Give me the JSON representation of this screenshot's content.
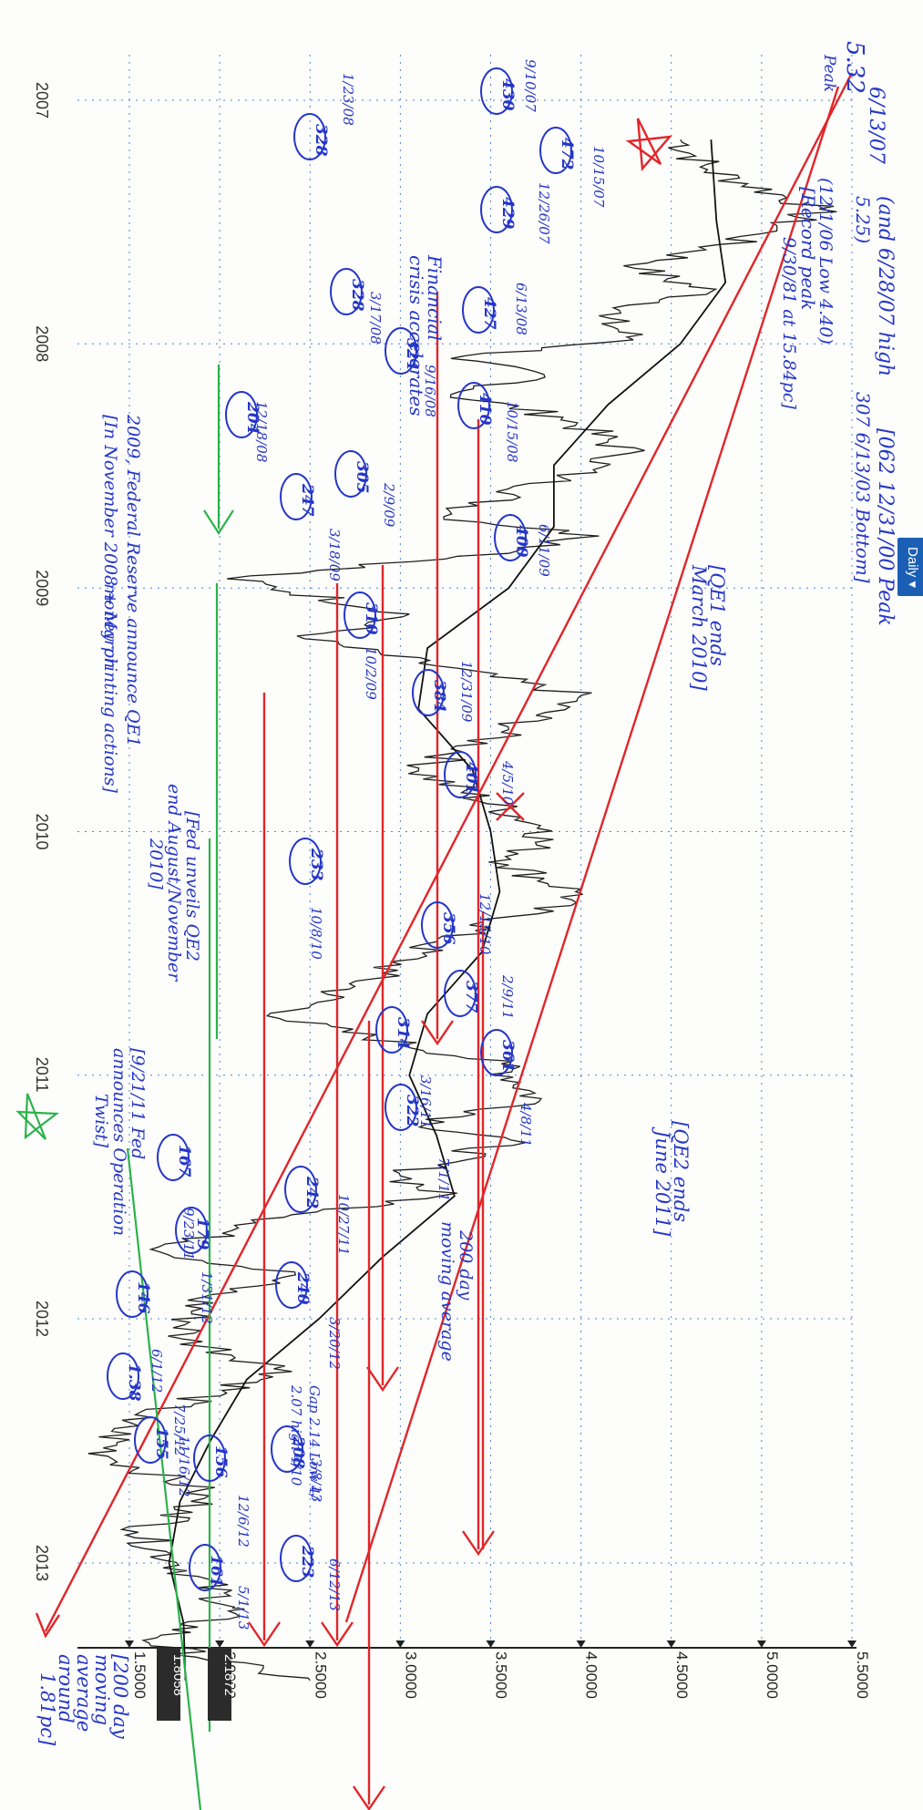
{
  "tab": {
    "label": "Daily ▾"
  },
  "badges": {
    "upper": "2.1872",
    "lower": "1.8058"
  },
  "chart_data": {
    "type": "line",
    "x_ticks": [
      "2007",
      "2008",
      "2009",
      "2010",
      "2011",
      "2012",
      "2013"
    ],
    "y_ticks": [
      "1.5000",
      "2.0000",
      "2.5000",
      "3.0000",
      "3.5000",
      "4.0000",
      "4.5000",
      "5.0000",
      "5.5000"
    ],
    "ylim": [
      1.3,
      5.6
    ],
    "series": [
      {
        "points": [
          [
            "2007-03-01",
            4.55
          ],
          [
            "2007-04-15",
            4.7
          ],
          [
            "2007-06-13",
            5.32
          ],
          [
            "2007-07-20",
            5.0
          ],
          [
            "2007-09-10",
            4.3
          ],
          [
            "2007-10-15",
            4.72
          ],
          [
            "2007-11-20",
            4.1
          ],
          [
            "2007-12-26",
            4.29
          ],
          [
            "2008-01-23",
            3.28
          ],
          [
            "2008-02-20",
            3.8
          ],
          [
            "2008-03-17",
            3.28
          ],
          [
            "2008-04-20",
            3.9
          ],
          [
            "2008-06-13",
            4.27
          ],
          [
            "2008-07-20",
            3.9
          ],
          [
            "2008-09-16",
            3.24
          ],
          [
            "2008-10-15",
            4.1
          ],
          [
            "2008-11-10",
            3.6
          ],
          [
            "2008-12-18",
            2.04
          ],
          [
            "2009-02-09",
            3.05
          ],
          [
            "2009-03-18",
            2.47
          ],
          [
            "2009-06-11",
            4.0
          ],
          [
            "2009-08-01",
            3.6
          ],
          [
            "2009-10-02",
            3.1
          ],
          [
            "2009-12-31",
            3.84
          ],
          [
            "2010-02-20",
            3.6
          ],
          [
            "2010-04-05",
            4.01
          ],
          [
            "2010-06-15",
            3.2
          ],
          [
            "2010-08-01",
            2.9
          ],
          [
            "2010-10-08",
            2.33
          ],
          [
            "2010-12-15",
            3.56
          ],
          [
            "2011-02-09",
            3.77
          ],
          [
            "2011-03-16",
            3.14
          ],
          [
            "2011-04-08",
            3.61
          ],
          [
            "2011-06-01",
            3.0
          ],
          [
            "2011-07-01",
            3.22
          ],
          [
            "2011-08-10",
            2.2
          ],
          [
            "2011-09-23",
            1.67
          ],
          [
            "2011-10-27",
            2.42
          ],
          [
            "2011-11-30",
            1.9
          ],
          [
            "2012-01-31",
            1.79
          ],
          [
            "2012-03-20",
            2.4
          ],
          [
            "2012-06-01",
            1.46
          ],
          [
            "2012-07-25",
            1.38
          ],
          [
            "2012-09-14",
            1.89
          ],
          [
            "2012-10-17",
            1.85
          ],
          [
            "2012-11-16",
            1.55
          ],
          [
            "2012-12-31",
            1.76
          ],
          [
            "2013-03-08",
            2.08
          ],
          [
            "2013-03-14",
            2.05
          ],
          [
            "2013-05-01",
            1.61
          ],
          [
            "2013-06-12",
            2.23
          ],
          [
            "2013-06-26",
            2.5
          ]
        ]
      },
      {
        "points": [
          [
            "2007-03-01",
            4.72
          ],
          [
            "2007-07-01",
            4.75
          ],
          [
            "2007-10-01",
            4.8
          ],
          [
            "2008-01-01",
            4.55
          ],
          [
            "2008-04-01",
            4.15
          ],
          [
            "2008-07-01",
            3.85
          ],
          [
            "2008-10-01",
            3.85
          ],
          [
            "2009-01-01",
            3.6
          ],
          [
            "2009-04-01",
            3.15
          ],
          [
            "2009-07-01",
            3.1
          ],
          [
            "2009-10-01",
            3.4
          ],
          [
            "2010-01-01",
            3.5
          ],
          [
            "2010-04-01",
            3.55
          ],
          [
            "2010-07-01",
            3.45
          ],
          [
            "2010-10-01",
            3.15
          ],
          [
            "2011-01-01",
            3.05
          ],
          [
            "2011-04-01",
            3.2
          ],
          [
            "2011-07-01",
            3.3
          ],
          [
            "2011-10-01",
            2.9
          ],
          [
            "2012-01-01",
            2.55
          ],
          [
            "2012-04-01",
            2.15
          ],
          [
            "2012-07-01",
            1.95
          ],
          [
            "2012-10-01",
            1.78
          ],
          [
            "2013-01-01",
            1.72
          ],
          [
            "2013-04-01",
            1.8
          ],
          [
            "2013-06-26",
            1.81
          ]
        ]
      }
    ]
  },
  "annotations": {
    "top_note_1": "(and 6/28/07 high",
    "top_note_2": "5.25)",
    "top_note_3": "[062 12/31/00 Peak",
    "top_note_4": "307 6/13/03 Bottom]",
    "top_note_5": "(12/1/06 Low 4.40)",
    "top_note_6": "[Record peak",
    "top_note_7": "9/30/81 at 15.84pc]",
    "peak_value": "5.32",
    "peak_label": "Peak",
    "peak_date": "6/13/07",
    "qe1_end_1": "[QE1 ends",
    "qe1_end_2": "March 2010]",
    "qe2_end_1": "[QE2 ends",
    "qe2_end_2": "June 2011]",
    "fin_crisis_1": "Financial",
    "fin_crisis_2": "crisis accelerates",
    "qe1_note_1": "[In November 2008 + March",
    "qe1_note_2": "2009, Federal Reserve announce QE1",
    "qe1_note_3": "money printing actions]",
    "qe2_note_1": "[Fed unveils QE2",
    "qe2_note_2": "end August/November",
    "qe2_note_3": "2010]",
    "twist_1": "[9/21/11 Fed",
    "twist_2": "announces Operation",
    "twist_3": "Twist]",
    "ma_label_1": "200 day",
    "ma_label_2": "moving average",
    "ma_right_1": "[200 day",
    "ma_right_2": "moving",
    "ma_right_3": "average",
    "ma_right_4": "around",
    "ma_right_5": "1.81pc]",
    "gap_note_1": "Gap 2.14 Low 4/",
    "gap_note_2": "2.07 high 4/10",
    "points": [
      {
        "date": "9/10/07",
        "value": "430"
      },
      {
        "date": "10/15/07",
        "value": "472"
      },
      {
        "date": "1/23/08",
        "value": "328"
      },
      {
        "date": "12/26/07",
        "value": "429"
      },
      {
        "date": "3/17/08",
        "value": "328"
      },
      {
        "date": "6/13/08",
        "value": "427"
      },
      {
        "date": "9/16/08",
        "value": "324"
      },
      {
        "date": "10/15/08",
        "value": "410"
      },
      {
        "date": "12/18/08",
        "value": "204"
      },
      {
        "date": "2/9/09",
        "value": "305"
      },
      {
        "date": "3/18/09",
        "value": "247"
      },
      {
        "date": "6/11/09",
        "value": "400"
      },
      {
        "date": "10/2/09",
        "value": "310"
      },
      {
        "date": "12/31/09",
        "value": "384"
      },
      {
        "date": "4/5/10",
        "value": "401"
      },
      {
        "date": "10/8/10",
        "value": "233"
      },
      {
        "date": "12/15/10",
        "value": "356"
      },
      {
        "date": "2/9/11",
        "value": "377"
      },
      {
        "date": "3/16/11",
        "value": "314"
      },
      {
        "date": "4/8/11",
        "value": "361"
      },
      {
        "date": "7/1/11",
        "value": "322"
      },
      {
        "date": "9/23/11",
        "value": "167"
      },
      {
        "date": "10/27/11",
        "value": "242"
      },
      {
        "date": "1/31/12",
        "value": "179"
      },
      {
        "date": "3/20/12",
        "value": "240"
      },
      {
        "date": "6/1/12",
        "value": "146"
      },
      {
        "date": "7/25/12",
        "value": "1.38"
      },
      {
        "date": "11/16/12",
        "value": "155"
      },
      {
        "date": "12/6/12",
        "value": "156"
      },
      {
        "date": "3/8/13",
        "value": "208"
      },
      {
        "date": "5/1/13",
        "value": "161"
      },
      {
        "date": "6/12/13",
        "value": "223"
      }
    ]
  },
  "colors": {
    "price": "#1e1e1e",
    "ma": "#111111",
    "ink_blue": "#2436c8",
    "ink_red": "#e0262a",
    "ink_green": "#2bb34a",
    "grid": "#4a86d8",
    "badge": "#2b2b2b"
  }
}
